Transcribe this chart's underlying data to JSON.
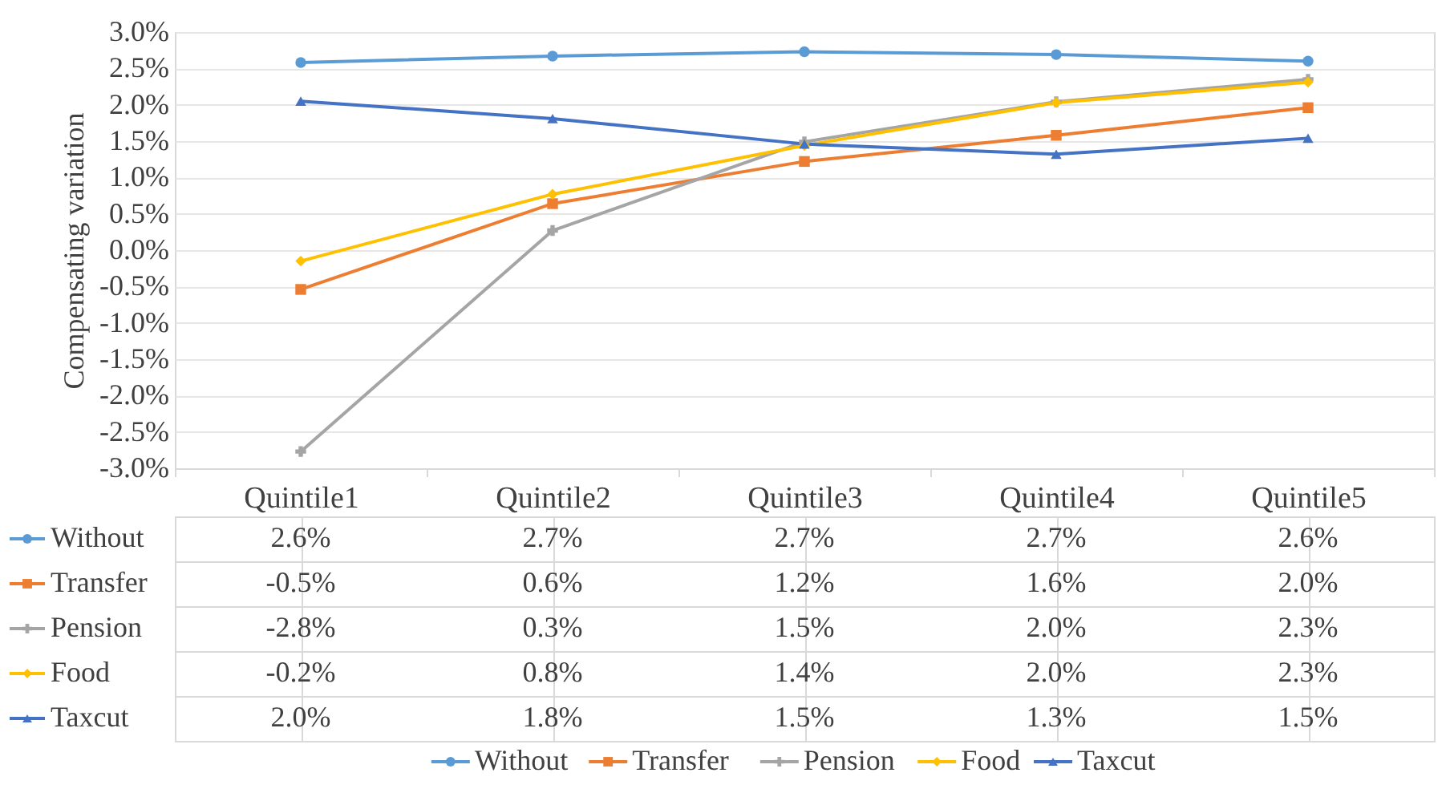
{
  "chart_data": {
    "type": "line",
    "ylabel": "Compensating variation",
    "categories": [
      "Quintile1",
      "Quintile2",
      "Quintile3",
      "Quintile4",
      "Quintile5"
    ],
    "series": [
      {
        "name": "Without",
        "color": "#5b9bd5",
        "marker": "circle",
        "values": [
          2.58,
          2.67,
          2.73,
          2.69,
          2.6
        ],
        "value_labels": [
          "2.6%",
          "2.7%",
          "2.7%",
          "2.7%",
          "2.6%"
        ]
      },
      {
        "name": "Transfer",
        "color": "#ed7d31",
        "marker": "square",
        "values": [
          -0.54,
          0.64,
          1.22,
          1.58,
          1.96
        ],
        "value_labels": [
          "-0.5%",
          "0.6%",
          "1.2%",
          "1.6%",
          "2.0%"
        ]
      },
      {
        "name": "Pension",
        "color": "#a5a5a5",
        "marker": "cross",
        "values": [
          -2.77,
          0.27,
          1.49,
          2.04,
          2.35
        ],
        "value_labels": [
          "-2.8%",
          "0.3%",
          "1.5%",
          "2.0%",
          "2.3%"
        ]
      },
      {
        "name": "Food",
        "color": "#ffc000",
        "marker": "diamond",
        "values": [
          -0.15,
          0.77,
          1.44,
          2.03,
          2.31
        ],
        "value_labels": [
          "-0.2%",
          "0.8%",
          "1.4%",
          "2.0%",
          "2.3%"
        ]
      },
      {
        "name": "Taxcut",
        "color": "#4472c4",
        "marker": "triangle",
        "values": [
          2.05,
          1.81,
          1.46,
          1.32,
          1.54
        ],
        "value_labels": [
          "2.0%",
          "1.8%",
          "1.5%",
          "1.3%",
          "1.5%"
        ]
      }
    ],
    "ylim": [
      -3,
      3
    ],
    "yticks": [
      {
        "value": -3,
        "label": "-3.0%"
      },
      {
        "value": -2.5,
        "label": "-2.5%"
      },
      {
        "value": -2,
        "label": "-2.0%"
      },
      {
        "value": -1.5,
        "label": "-1.5%"
      },
      {
        "value": -1,
        "label": "-1.0%"
      },
      {
        "value": -0.5,
        "label": "-0.5%"
      },
      {
        "value": 0,
        "label": "0.0%"
      },
      {
        "value": 0.5,
        "label": "0.5%"
      },
      {
        "value": 1,
        "label": "1.0%"
      },
      {
        "value": 1.5,
        "label": "1.5%"
      },
      {
        "value": 2,
        "label": "2.0%"
      },
      {
        "value": 2.5,
        "label": "2.5%"
      },
      {
        "value": 3,
        "label": "3.0%"
      }
    ],
    "grid": "y",
    "legend": "bottom",
    "line_style": "solid"
  }
}
